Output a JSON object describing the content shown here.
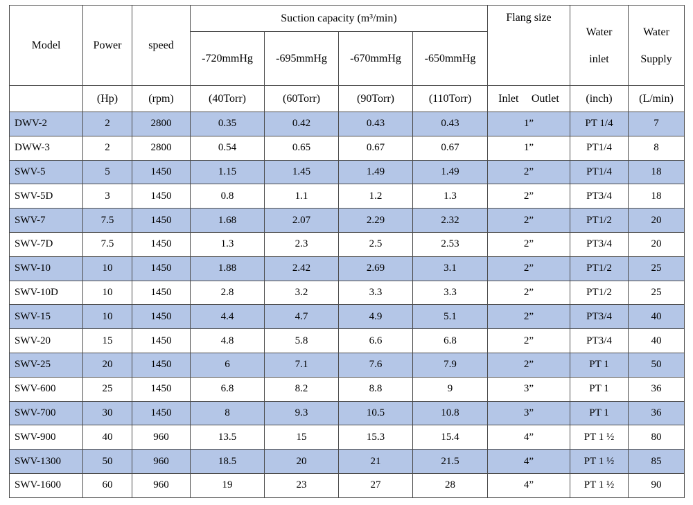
{
  "header": {
    "model": "Model",
    "power": "Power",
    "speed": "speed",
    "suction_group": "Suction capacity (m³/min)",
    "pressures": [
      "-720mmHg",
      "-695mmHg",
      "-670mmHg",
      "-650mmHg"
    ],
    "flang": "Flang size",
    "water_inlet_line1": "Water",
    "water_inlet_line2": "inlet",
    "water_supply_line1": "Water",
    "water_supply_line2": "Supply"
  },
  "units": {
    "power": "(Hp)",
    "speed": "(rpm)",
    "torr": [
      "(40Torr)",
      "(60Torr)",
      "(90Torr)",
      "(110Torr)"
    ],
    "flang_inlet": "Inlet",
    "flang_outlet": "Outlet",
    "water_inlet": "(inch)",
    "water_supply": "(L/min)"
  },
  "rows": [
    {
      "model": "DWV-2",
      "power": "2",
      "speed": "2800",
      "c1": "0.35",
      "c2": "0.42",
      "c3": "0.43",
      "c4": "0.43",
      "flang": "1”",
      "inlet": "PT 1/4",
      "supply": "7"
    },
    {
      "model": "DWW-3",
      "power": "2",
      "speed": "2800",
      "c1": "0.54",
      "c2": "0.65",
      "c3": "0.67",
      "c4": "0.67",
      "flang": "1”",
      "inlet": "PT1/4",
      "supply": "8"
    },
    {
      "model": "SWV-5",
      "power": "5",
      "speed": "1450",
      "c1": "1.15",
      "c2": "1.45",
      "c3": "1.49",
      "c4": "1.49",
      "flang": "2”",
      "inlet": "PT1/4",
      "supply": "18"
    },
    {
      "model": "SWV-5D",
      "power": "3",
      "speed": "1450",
      "c1": "0.8",
      "c2": "1.1",
      "c3": "1.2",
      "c4": "1.3",
      "flang": "2”",
      "inlet": "PT3/4",
      "supply": "18"
    },
    {
      "model": "SWV-7",
      "power": "7.5",
      "speed": "1450",
      "c1": "1.68",
      "c2": "2.07",
      "c3": "2.29",
      "c4": "2.32",
      "flang": "2”",
      "inlet": "PT1/2",
      "supply": "20"
    },
    {
      "model": "SWV-7D",
      "power": "7.5",
      "speed": "1450",
      "c1": "1.3",
      "c2": "2.3",
      "c3": "2.5",
      "c4": "2.53",
      "flang": "2”",
      "inlet": "PT3/4",
      "supply": "20"
    },
    {
      "model": "SWV-10",
      "power": "10",
      "speed": "1450",
      "c1": "1.88",
      "c2": "2.42",
      "c3": "2.69",
      "c4": "3.1",
      "flang": "2”",
      "inlet": "PT1/2",
      "supply": "25"
    },
    {
      "model": "SWV-10D",
      "power": "10",
      "speed": "1450",
      "c1": "2.8",
      "c2": "3.2",
      "c3": "3.3",
      "c4": "3.3",
      "flang": "2”",
      "inlet": "PT1/2",
      "supply": "25"
    },
    {
      "model": "SWV-15",
      "power": "10",
      "speed": "1450",
      "c1": "4.4",
      "c2": "4.7",
      "c3": "4.9",
      "c4": "5.1",
      "flang": "2”",
      "inlet": "PT3/4",
      "supply": "40"
    },
    {
      "model": "SWV-20",
      "power": "15",
      "speed": "1450",
      "c1": "4.8",
      "c2": "5.8",
      "c3": "6.6",
      "c4": "6.8",
      "flang": "2”",
      "inlet": "PT3/4",
      "supply": "40"
    },
    {
      "model": "SWV-25",
      "power": "20",
      "speed": "1450",
      "c1": "6",
      "c2": "7.1",
      "c3": "7.6",
      "c4": "7.9",
      "flang": "2”",
      "inlet": "PT 1",
      "supply": "50"
    },
    {
      "model": "SWV-600",
      "power": "25",
      "speed": "1450",
      "c1": "6.8",
      "c2": "8.2",
      "c3": "8.8",
      "c4": "9",
      "flang": "3”",
      "inlet": "PT 1",
      "supply": "36"
    },
    {
      "model": "SWV-700",
      "power": "30",
      "speed": "1450",
      "c1": "8",
      "c2": "9.3",
      "c3": "10.5",
      "c4": "10.8",
      "flang": "3”",
      "inlet": "PT 1",
      "supply": "36"
    },
    {
      "model": "SWV-900",
      "power": "40",
      "speed": "960",
      "c1": "13.5",
      "c2": "15",
      "c3": "15.3",
      "c4": "15.4",
      "flang": "4”",
      "inlet": "PT 1 ½",
      "supply": "80"
    },
    {
      "model": "SWV-1300",
      "power": "50",
      "speed": "960",
      "c1": "18.5",
      "c2": "20",
      "c3": "21",
      "c4": "21.5",
      "flang": "4”",
      "inlet": "PT 1 ½",
      "supply": "85"
    },
    {
      "model": "SWV-1600",
      "power": "60",
      "speed": "960",
      "c1": "19",
      "c2": "23",
      "c3": "27",
      "c4": "28",
      "flang": "4”",
      "inlet": "PT 1 ½",
      "supply": "90"
    }
  ],
  "colors": {
    "shaded_row": "#b4c6e7",
    "border": "#4a4a4a"
  }
}
